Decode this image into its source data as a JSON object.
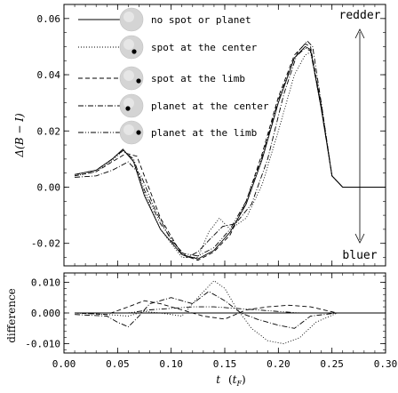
{
  "chart_data": [
    {
      "type": "line",
      "panel": "main",
      "ylabel": "Δ(B − I)",
      "ylim": [
        -0.028,
        0.065
      ],
      "xlim": [
        0.0,
        0.3
      ],
      "yticks": [
        "-0.02",
        "0.00",
        "0.02",
        "0.04",
        "0.06"
      ],
      "annotations": {
        "top": "redder",
        "bottom": "bluer"
      },
      "legend_position": "top-left",
      "series": [
        {
          "name": "no spot or planet",
          "dash": "solid",
          "x": [
            0.01,
            0.03,
            0.045,
            0.055,
            0.065,
            0.075,
            0.09,
            0.11,
            0.125,
            0.14,
            0.155,
            0.17,
            0.185,
            0.2,
            0.215,
            0.225,
            0.23,
            0.24,
            0.25,
            0.26,
            0.3
          ],
          "y": [
            0.0045,
            0.006,
            0.01,
            0.0135,
            0.009,
            -0.003,
            -0.015,
            -0.024,
            -0.0255,
            -0.0225,
            -0.016,
            -0.006,
            0.01,
            0.03,
            0.046,
            0.05,
            0.049,
            0.028,
            0.004,
            0.0,
            0.0
          ]
        },
        {
          "name": "spot at the center",
          "dash": "dotted",
          "x": [
            0.01,
            0.03,
            0.045,
            0.055,
            0.065,
            0.075,
            0.09,
            0.11,
            0.125,
            0.135,
            0.145,
            0.155,
            0.17,
            0.185,
            0.2,
            0.215,
            0.225,
            0.23,
            0.24,
            0.25,
            0.26,
            0.3
          ],
          "y": [
            0.004,
            0.0055,
            0.0095,
            0.013,
            0.0095,
            -0.002,
            -0.015,
            -0.025,
            -0.025,
            -0.016,
            -0.011,
            -0.015,
            -0.011,
            0.001,
            0.02,
            0.04,
            0.047,
            0.048,
            0.03,
            0.004,
            0.0,
            0.0
          ]
        },
        {
          "name": "spot at the limb",
          "dash": "dashed",
          "x": [
            0.01,
            0.03,
            0.045,
            0.058,
            0.068,
            0.078,
            0.09,
            0.11,
            0.125,
            0.14,
            0.155,
            0.17,
            0.185,
            0.2,
            0.215,
            0.225,
            0.23,
            0.24,
            0.25,
            0.26,
            0.3
          ],
          "y": [
            0.004,
            0.0055,
            0.009,
            0.012,
            0.011,
            0.001,
            -0.011,
            -0.024,
            -0.026,
            -0.023,
            -0.017,
            -0.005,
            0.012,
            0.032,
            0.047,
            0.051,
            0.05,
            0.029,
            0.004,
            0.0,
            0.0
          ]
        },
        {
          "name": "planet at the center",
          "dash": "dashdot",
          "x": [
            0.01,
            0.03,
            0.045,
            0.06,
            0.072,
            0.085,
            0.1,
            0.115,
            0.125,
            0.135,
            0.148,
            0.16,
            0.175,
            0.19,
            0.205,
            0.218,
            0.227,
            0.232,
            0.24,
            0.25,
            0.26,
            0.3
          ],
          "y": [
            0.0035,
            0.004,
            0.006,
            0.009,
            0.004,
            -0.008,
            -0.019,
            -0.025,
            -0.023,
            -0.019,
            -0.014,
            -0.013,
            -0.006,
            0.01,
            0.033,
            0.048,
            0.052,
            0.05,
            0.03,
            0.004,
            0.0,
            0.0
          ]
        },
        {
          "name": "planet at the limb",
          "dash": "dashdotdot",
          "x": [
            0.01,
            0.03,
            0.045,
            0.055,
            0.065,
            0.075,
            0.09,
            0.11,
            0.125,
            0.14,
            0.155,
            0.17,
            0.185,
            0.2,
            0.215,
            0.225,
            0.23,
            0.24,
            0.25,
            0.26,
            0.3
          ],
          "y": [
            0.0045,
            0.006,
            0.01,
            0.013,
            0.01,
            -0.001,
            -0.013,
            -0.0235,
            -0.0245,
            -0.0215,
            -0.015,
            -0.005,
            0.011,
            0.031,
            0.046,
            0.0495,
            0.0485,
            0.028,
            0.004,
            0.0,
            0.0
          ]
        }
      ]
    },
    {
      "type": "line",
      "panel": "difference",
      "ylabel": "difference",
      "xlabel": "t (tF)",
      "xlabel_main": "t",
      "xlabel_paren_open": "(",
      "xlabel_var": "t",
      "xlabel_sub": "F",
      "xlabel_paren_close": ")",
      "ylim": [
        -0.013,
        0.013
      ],
      "xlim": [
        0.0,
        0.3
      ],
      "yticks": [
        "-0.010",
        "0.000",
        "0.010"
      ],
      "xticks": [
        "0.00",
        "0.05",
        "0.10",
        "0.15",
        "0.20",
        "0.25",
        "0.30"
      ],
      "series": [
        {
          "name": "no spot or planet",
          "dash": "solid",
          "x": [
            0.01,
            0.05,
            0.1,
            0.15,
            0.2,
            0.25,
            0.3
          ],
          "y": [
            0,
            0,
            0,
            0,
            0,
            0,
            0
          ]
        },
        {
          "name": "spot at the center",
          "dash": "dotted",
          "x": [
            0.01,
            0.04,
            0.06,
            0.075,
            0.09,
            0.11,
            0.125,
            0.14,
            0.15,
            0.16,
            0.175,
            0.19,
            0.205,
            0.22,
            0.235,
            0.255,
            0.3
          ],
          "y": [
            0.0,
            -0.0005,
            -0.001,
            0.0005,
            0.0,
            -0.001,
            0.005,
            0.0105,
            0.008,
            0.002,
            -0.005,
            -0.009,
            -0.01,
            -0.008,
            -0.003,
            0.0,
            0.0
          ]
        },
        {
          "name": "spot at the limb",
          "dash": "dashed",
          "x": [
            0.01,
            0.04,
            0.06,
            0.075,
            0.09,
            0.11,
            0.13,
            0.15,
            0.17,
            0.19,
            0.21,
            0.23,
            0.255,
            0.3
          ],
          "y": [
            0.0,
            -0.0005,
            0.002,
            0.004,
            0.003,
            0.001,
            -0.001,
            -0.002,
            0.001,
            0.002,
            0.0025,
            0.002,
            0.0,
            0.0
          ]
        },
        {
          "name": "planet at the center",
          "dash": "dashdot",
          "x": [
            0.01,
            0.04,
            0.05,
            0.06,
            0.07,
            0.08,
            0.1,
            0.12,
            0.135,
            0.15,
            0.165,
            0.18,
            0.2,
            0.215,
            0.23,
            0.255,
            0.3
          ],
          "y": [
            -0.0005,
            -0.001,
            -0.003,
            -0.0045,
            -0.001,
            0.003,
            0.005,
            0.003,
            0.007,
            0.004,
            0.0,
            -0.002,
            -0.004,
            -0.005,
            -0.001,
            0.0,
            0.0
          ]
        },
        {
          "name": "planet at the limb",
          "dash": "dashdotdot",
          "x": [
            0.01,
            0.04,
            0.06,
            0.08,
            0.1,
            0.12,
            0.14,
            0.16,
            0.18,
            0.2,
            0.22,
            0.24,
            0.255,
            0.3
          ],
          "y": [
            0.0,
            0.0,
            0.0,
            0.001,
            0.0015,
            0.002,
            0.002,
            0.0015,
            0.001,
            0.0005,
            0.0,
            0.0,
            0.0,
            0.0
          ]
        }
      ]
    }
  ]
}
